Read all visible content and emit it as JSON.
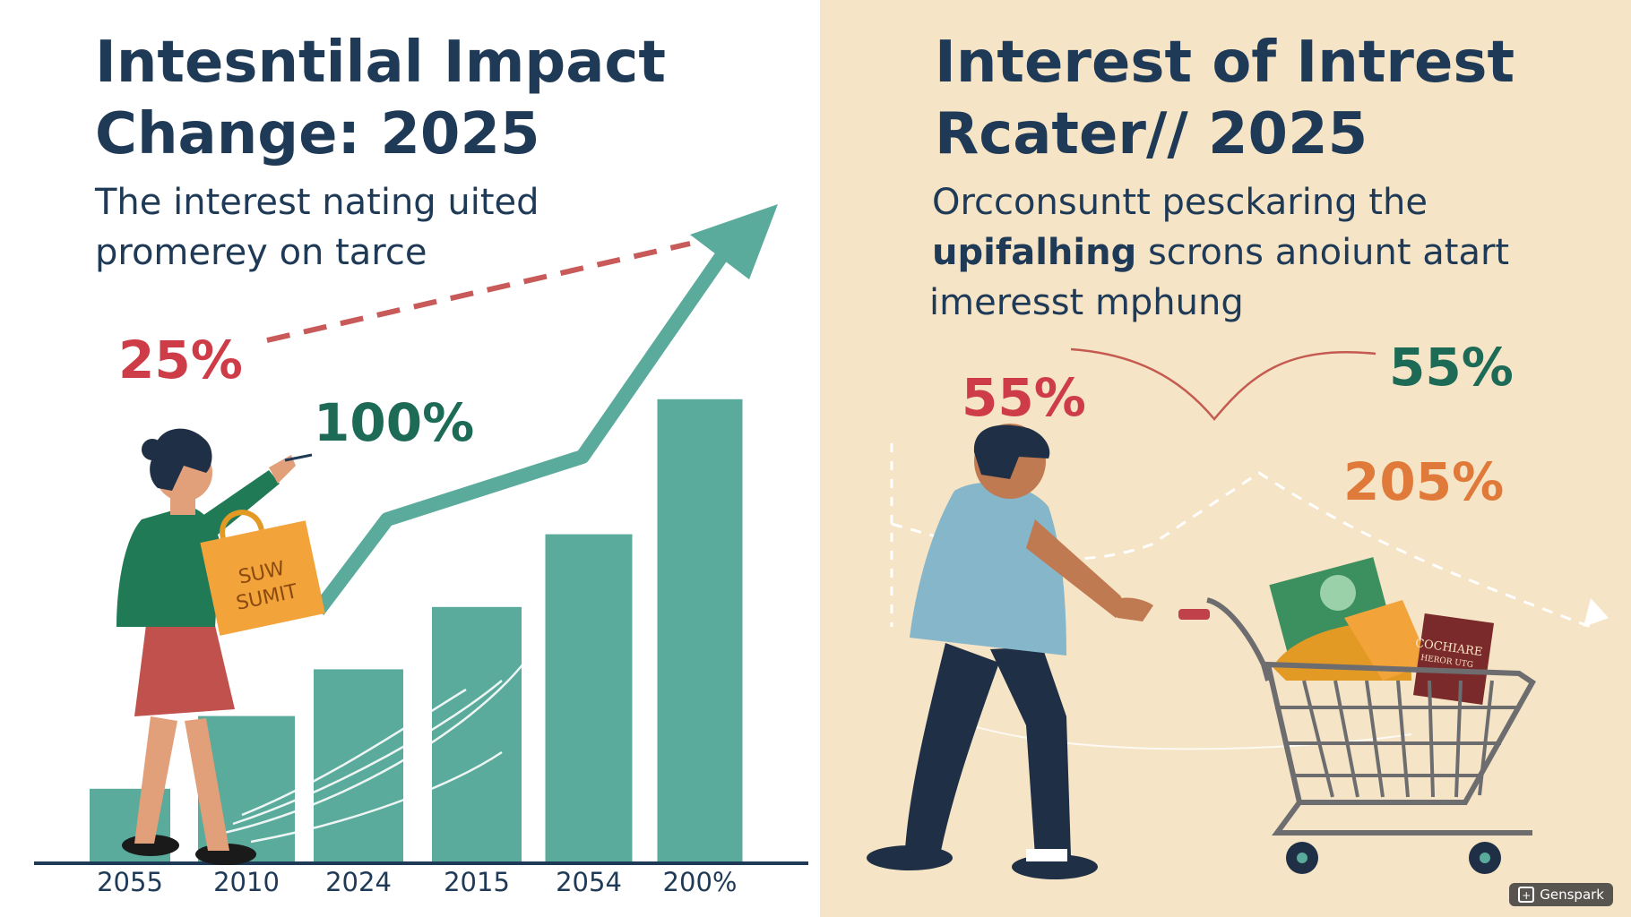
{
  "left": {
    "title_line1": "Intesntilal Impact",
    "title_line2": "Change: 2025",
    "subtitle_line1": "The interest nating uited",
    "subtitle_line2": "promerey on tarce",
    "stat_red": "25%",
    "stat_green": "100%",
    "bag_text_line1": "SUW",
    "bag_text_line2": "SUMIT",
    "chart_data": {
      "type": "bar",
      "categories": [
        "2055",
        "2010",
        "2024",
        "2015",
        "2054",
        "200%"
      ],
      "values": [
        14,
        28,
        37,
        49,
        63,
        89
      ],
      "ylim": [
        0,
        100
      ],
      "title": "",
      "xlabel": "",
      "ylabel": ""
    },
    "colors": {
      "bar": "#5aab9c",
      "accent_red": "#cd3c47",
      "accent_green": "#1d6a57"
    }
  },
  "right": {
    "title_line1": "Interest of Intrest",
    "title_line2": "Rcater// 2025",
    "subtitle_line1": "Orcconsuntt pesckaring the",
    "subtitle_line2_bold": "upifalhing",
    "subtitle_line2_rest": " scrons anoiunt atart",
    "subtitle_line3": "imeresst mphung",
    "stat_red": "55%",
    "stat_green": "55%",
    "stat_orange": "205%",
    "book_label_line1": "COCHIARE",
    "book_label_line2": "HEROR UTG",
    "colors": {
      "accent_red": "#cd3c47",
      "accent_green": "#1d6a57",
      "accent_orange": "#e07a3a"
    }
  },
  "watermark": {
    "label": "Genspark",
    "icon": "genspark-logo-icon"
  }
}
